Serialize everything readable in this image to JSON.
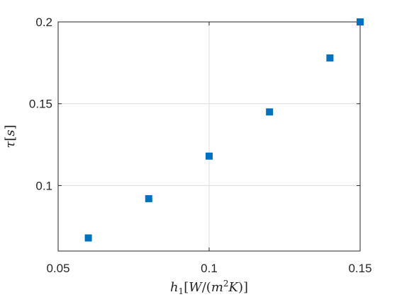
{
  "chart_data": {
    "type": "scatter",
    "xlabel": "h_1[W/(m^2K)]",
    "ylabel": "τ[s]",
    "xlim": [
      0.05,
      0.15
    ],
    "ylim": [
      0.06,
      0.2
    ],
    "xticks": [
      0.05,
      0.1,
      0.15
    ],
    "yticks": [
      0.1,
      0.15,
      0.2
    ],
    "xtick_labels": [
      "0.05",
      "0.1",
      "0.15"
    ],
    "ytick_labels": [
      "0.1",
      "0.15",
      "0.2"
    ],
    "grid": true,
    "marker": "square",
    "series": [
      {
        "color": "#0072BD",
        "x": [
          0.06,
          0.08,
          0.1,
          0.12,
          0.14,
          0.15
        ],
        "y": [
          0.068,
          0.092,
          0.118,
          0.145,
          0.178,
          0.2
        ]
      }
    ]
  }
}
